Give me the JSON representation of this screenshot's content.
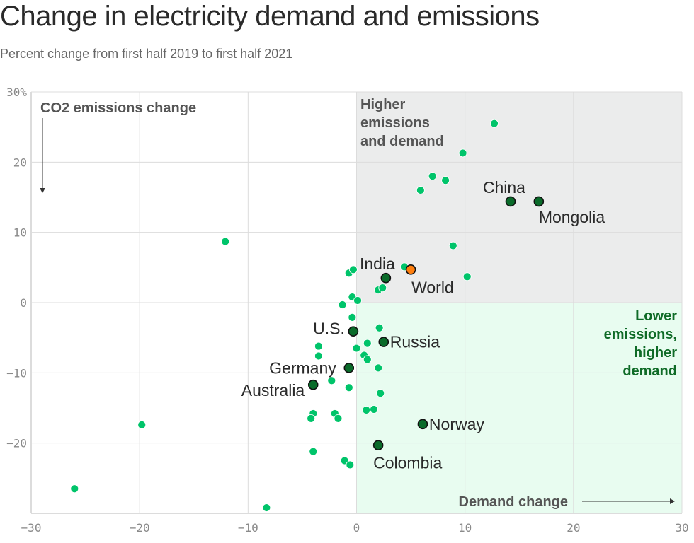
{
  "header": {
    "title": "Change in electricity demand and emissions",
    "subtitle": "Percent change from first half 2019 to first half 2021"
  },
  "colors": {
    "point": "#00c46a",
    "highlight": "#0a6b2a",
    "world": "#ff7f0e",
    "upper_right_bg": "#ebecec",
    "lower_right_bg": "#e8fcf0",
    "grid": "#dcdcdc",
    "lower_right_label": "#0f6b27"
  },
  "chart_data": {
    "type": "scatter",
    "title": "Change in electricity demand and emissions",
    "subtitle": "Percent change from first half 2019 to first half 2021",
    "xlabel": "Demand change",
    "ylabel": "CO2 emissions change",
    "xlim": [
      -30,
      30
    ],
    "ylim": [
      -30,
      30
    ],
    "x_ticks": [
      -30,
      -20,
      -10,
      0,
      10,
      20,
      30
    ],
    "x_tick_labels": [
      "−30",
      "−20",
      "−10",
      "0",
      "10",
      "20",
      "30"
    ],
    "y_ticks": [
      30,
      20,
      10,
      0,
      -10,
      -20
    ],
    "y_tick_labels": [
      "30%",
      "20",
      "10",
      "0",
      "−10",
      "−20"
    ],
    "grid": true,
    "quadrant_labels": {
      "upper_right": [
        "Higher",
        "emissions",
        "and demand"
      ],
      "lower_right": [
        "Lower",
        "emissions,",
        "higher",
        "demand"
      ]
    },
    "labeled_points": [
      {
        "name": "China",
        "x": 14.2,
        "y": 14.4,
        "kind": "highlight",
        "label_pos": "above-left"
      },
      {
        "name": "Mongolia",
        "x": 16.8,
        "y": 14.4,
        "kind": "highlight",
        "label_pos": "below"
      },
      {
        "name": "India",
        "x": 2.7,
        "y": 3.5,
        "kind": "highlight",
        "label_pos": "above-left"
      },
      {
        "name": "World",
        "x": 5.0,
        "y": 4.7,
        "kind": "world",
        "label_pos": "below"
      },
      {
        "name": "U.S.",
        "x": -0.3,
        "y": -4.1,
        "kind": "highlight",
        "label_pos": "left"
      },
      {
        "name": "Russia",
        "x": 2.5,
        "y": -5.6,
        "kind": "highlight",
        "label_pos": "right"
      },
      {
        "name": "Germany",
        "x": -0.7,
        "y": -9.3,
        "kind": "highlight",
        "label_pos": "left"
      },
      {
        "name": "Australia",
        "x": -4.0,
        "y": -11.7,
        "kind": "highlight",
        "label_pos": "left"
      },
      {
        "name": "Norway",
        "x": 6.1,
        "y": -17.3,
        "kind": "highlight",
        "label_pos": "right"
      },
      {
        "name": "Colombia",
        "x": 2.0,
        "y": -20.3,
        "kind": "highlight",
        "label_pos": "below"
      }
    ],
    "points": [
      {
        "x": 12.7,
        "y": 25.5
      },
      {
        "x": 9.8,
        "y": 21.3
      },
      {
        "x": 7.0,
        "y": 18.0
      },
      {
        "x": 8.2,
        "y": 17.4
      },
      {
        "x": 5.9,
        "y": 16.0
      },
      {
        "x": 8.9,
        "y": 8.1
      },
      {
        "x": 4.4,
        "y": 5.1
      },
      {
        "x": 10.2,
        "y": 3.7
      },
      {
        "x": -12.1,
        "y": 8.7
      },
      {
        "x": -0.7,
        "y": 4.2
      },
      {
        "x": -0.3,
        "y": 4.7
      },
      {
        "x": 2.0,
        "y": 1.8
      },
      {
        "x": 2.4,
        "y": 2.1
      },
      {
        "x": -0.4,
        "y": 0.8
      },
      {
        "x": 0.1,
        "y": 0.3
      },
      {
        "x": -1.3,
        "y": -0.3
      },
      {
        "x": -0.4,
        "y": -2.1
      },
      {
        "x": 2.1,
        "y": -3.6
      },
      {
        "x": -3.5,
        "y": -6.2
      },
      {
        "x": -3.5,
        "y": -7.6
      },
      {
        "x": 0.0,
        "y": -6.5
      },
      {
        "x": 1.0,
        "y": -5.8
      },
      {
        "x": 0.7,
        "y": -7.5
      },
      {
        "x": 1.0,
        "y": -8.1
      },
      {
        "x": 2.0,
        "y": -9.3
      },
      {
        "x": -2.3,
        "y": -11.1
      },
      {
        "x": -0.7,
        "y": -12.1
      },
      {
        "x": 2.2,
        "y": -12.9
      },
      {
        "x": -4.0,
        "y": -15.8
      },
      {
        "x": -4.2,
        "y": -16.5
      },
      {
        "x": -2.0,
        "y": -15.8
      },
      {
        "x": -1.7,
        "y": -16.5
      },
      {
        "x": 0.9,
        "y": -15.3
      },
      {
        "x": 1.6,
        "y": -15.2
      },
      {
        "x": -4.0,
        "y": -21.2
      },
      {
        "x": -1.1,
        "y": -22.5
      },
      {
        "x": -0.6,
        "y": -23.1
      },
      {
        "x": -19.8,
        "y": -17.4
      },
      {
        "x": -26.0,
        "y": -26.5
      },
      {
        "x": -8.3,
        "y": -29.2
      }
    ]
  }
}
